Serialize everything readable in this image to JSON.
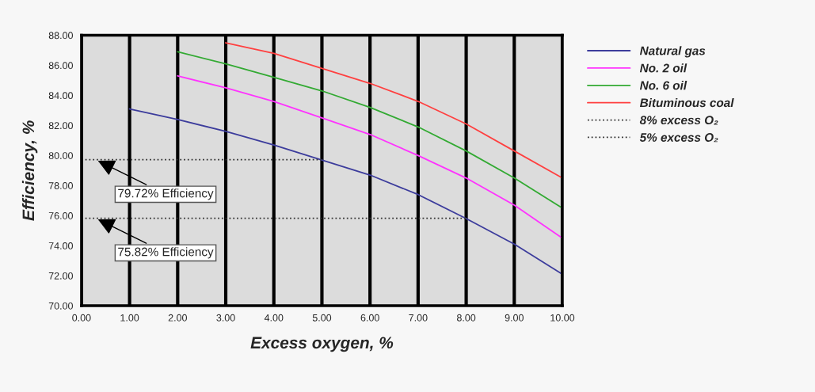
{
  "chart_data": {
    "type": "line",
    "xlabel": "Excess oxygen, %",
    "ylabel": "Efficiency, %",
    "xlim": [
      0,
      10
    ],
    "ylim": [
      70,
      88
    ],
    "xticks": [
      {
        "value": 0,
        "label": "0.00"
      },
      {
        "value": 1,
        "label": "1.00"
      },
      {
        "value": 2,
        "label": "2.00"
      },
      {
        "value": 3,
        "label": "3.00"
      },
      {
        "value": 4,
        "label": "4.00"
      },
      {
        "value": 5,
        "label": "5.00"
      },
      {
        "value": 6,
        "label": "6.00"
      },
      {
        "value": 7,
        "label": "7.00"
      },
      {
        "value": 8,
        "label": "8.00"
      },
      {
        "value": 9,
        "label": "9.00"
      },
      {
        "value": 10,
        "label": "10.00"
      }
    ],
    "yticks": [
      {
        "value": 70,
        "label": "70.00"
      },
      {
        "value": 72,
        "label": "72.00"
      },
      {
        "value": 74,
        "label": "74.00"
      },
      {
        "value": 76,
        "label": "76.00"
      },
      {
        "value": 78,
        "label": "78.00"
      },
      {
        "value": 80,
        "label": "80.00"
      },
      {
        "value": 82,
        "label": "82.00"
      },
      {
        "value": 84,
        "label": "84.00"
      },
      {
        "value": 86,
        "label": "86.00"
      },
      {
        "value": 88,
        "label": "88.00"
      }
    ],
    "grid": "x",
    "legend": "right",
    "line_style": "solid",
    "series": [
      {
        "name": "Natural gas",
        "color": "#3c3c9c",
        "x": [
          1,
          2,
          3,
          4,
          5,
          6,
          7,
          8,
          9,
          10
        ],
        "values": [
          83.1,
          82.4,
          81.6,
          80.7,
          79.7,
          78.7,
          77.4,
          75.8,
          74.1,
          72.1
        ]
      },
      {
        "name": "No. 2 oil",
        "color": "#ff33ff",
        "x": [
          2,
          3,
          4,
          5,
          6,
          7,
          8,
          9,
          10
        ],
        "values": [
          85.3,
          84.5,
          83.6,
          82.5,
          81.4,
          80.0,
          78.5,
          76.7,
          74.5
        ]
      },
      {
        "name": "No. 6 oil",
        "color": "#33aa33",
        "x": [
          2,
          3,
          4,
          5,
          6,
          7,
          8,
          9,
          10
        ],
        "values": [
          86.9,
          86.1,
          85.2,
          84.3,
          83.2,
          81.9,
          80.3,
          78.5,
          76.5
        ]
      },
      {
        "name": "Bituminous coal",
        "color": "#ff4040",
        "x": [
          3,
          4,
          5,
          6,
          7,
          8,
          9,
          10
        ],
        "values": [
          87.5,
          86.8,
          85.8,
          84.8,
          83.6,
          82.1,
          80.3,
          78.5
        ]
      },
      {
        "name": "8% excess O₂",
        "color": "#333333",
        "line_style": "dotted",
        "x": [
          0,
          8
        ],
        "values": [
          75.82,
          75.82
        ]
      },
      {
        "name": "5% excess O₂",
        "color": "#333333",
        "line_style": "dotted",
        "x": [
          0,
          5
        ],
        "values": [
          79.72,
          79.72
        ]
      }
    ],
    "annotations": [
      {
        "text": "79.72% Efficiency",
        "x": 0.3,
        "y": 79.72
      },
      {
        "text": "75.82% Efficiency",
        "x": 0.3,
        "y": 75.82
      }
    ]
  }
}
